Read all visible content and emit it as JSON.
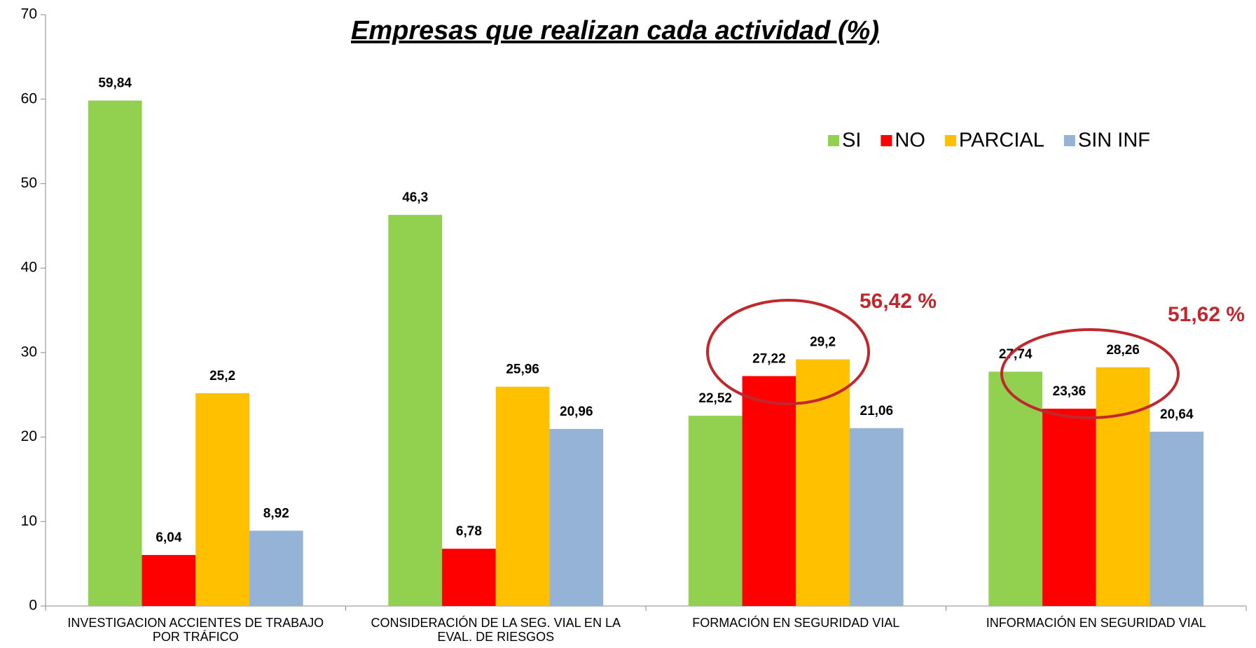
{
  "chart_data": {
    "type": "bar",
    "title": "Empresas que realizan cada actividad (%)",
    "categories": [
      "INVESTIGACION ACCIENTES DE TRABAJO POR TRÁFICO",
      "CONSIDERACIÓN DE LA SEG. VIAL EN LA EVAL. DE RIESGOS",
      "FORMACIÓN EN SEGURIDAD VIAL",
      "INFORMACIÓN EN SEGURIDAD VIAL"
    ],
    "series": [
      {
        "name": "SI",
        "color": "#92d050",
        "values": [
          59.84,
          46.3,
          22.52,
          27.74
        ],
        "value_labels": [
          "59,84",
          "46,3",
          "22,52",
          "27,74"
        ]
      },
      {
        "name": "NO",
        "color": "#ff0000",
        "values": [
          6.04,
          6.78,
          27.22,
          23.36
        ],
        "value_labels": [
          "6,04",
          "6,78",
          "27,22",
          "23,36"
        ]
      },
      {
        "name": "PARCIAL",
        "color": "#ffc000",
        "values": [
          25.2,
          25.96,
          29.2,
          28.26
        ],
        "value_labels": [
          "25,2",
          "25,96",
          "29,2",
          "28,26"
        ]
      },
      {
        "name": "SIN INF",
        "color": "#95b3d7",
        "values": [
          8.92,
          20.96,
          21.06,
          20.64
        ],
        "value_labels": [
          "8,92",
          "20,96",
          "21,06",
          "20,64"
        ]
      }
    ],
    "annotations": [
      "56,42 %",
      "51,62 %"
    ],
    "ylim": [
      0,
      70
    ],
    "yticks": [
      0,
      10,
      20,
      30,
      40,
      50,
      60,
      70
    ],
    "grid": false,
    "legend": "top-right"
  }
}
